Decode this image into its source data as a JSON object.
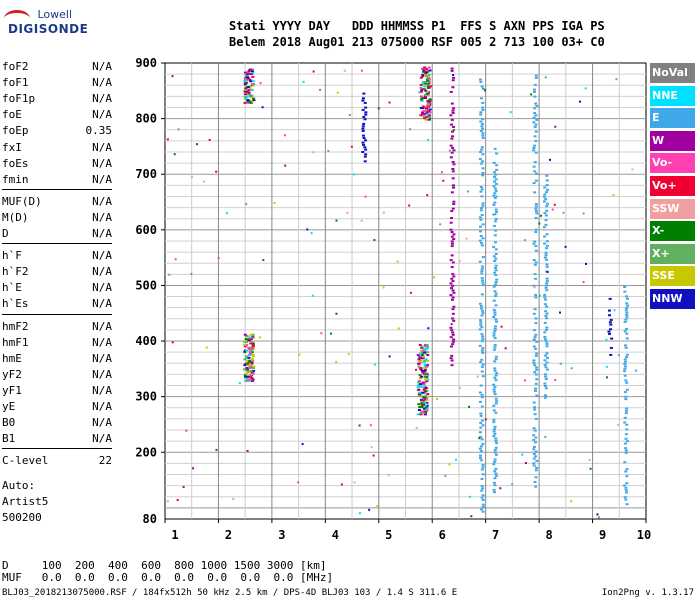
{
  "logo": {
    "top": "Lowell",
    "bottom": "DIGISONDE"
  },
  "station": {
    "header": "Stati YYYY DAY   DDD HHMMSS P1  FFS S AXN PPS IGA PS",
    "values": "Belem 2018 Aug01 213 075000 RSF 005 2 713 100 03+ C0"
  },
  "params": [
    {
      "name": "foF2",
      "value": "N/A"
    },
    {
      "name": "foF1",
      "value": "N/A"
    },
    {
      "name": "foF1p",
      "value": "N/A"
    },
    {
      "name": "foE",
      "value": "N/A"
    },
    {
      "name": "foEp",
      "value": "0.35"
    },
    {
      "name": "fxI",
      "value": "N/A"
    },
    {
      "name": "foEs",
      "value": "N/A"
    },
    {
      "name": "fmin",
      "value": "N/A"
    },
    {
      "name": "MUF(D)",
      "value": "N/A"
    },
    {
      "name": "M(D)",
      "value": "N/A"
    },
    {
      "name": "D",
      "value": "N/A"
    },
    {
      "name": "h`F",
      "value": "N/A"
    },
    {
      "name": "h`F2",
      "value": "N/A"
    },
    {
      "name": "h`E",
      "value": "N/A"
    },
    {
      "name": "h`Es",
      "value": "N/A"
    },
    {
      "name": "hmF2",
      "value": "N/A"
    },
    {
      "name": "hmF1",
      "value": "N/A"
    },
    {
      "name": "hmE",
      "value": "N/A"
    },
    {
      "name": "yF2",
      "value": "N/A"
    },
    {
      "name": "yF1",
      "value": "N/A"
    },
    {
      "name": "yE",
      "value": "N/A"
    },
    {
      "name": "B0",
      "value": "N/A"
    },
    {
      "name": "B1",
      "value": "N/A"
    },
    {
      "name": "C-level",
      "value": "22"
    }
  ],
  "auto": {
    "line1": "Auto:",
    "line2": "Artist5",
    "line3": "500200"
  },
  "legend": [
    {
      "label": "NoVal",
      "color": "#808080"
    },
    {
      "label": "NNE",
      "color": "#00e0ff"
    },
    {
      "label": "E",
      "color": "#40a8e8"
    },
    {
      "label": "W",
      "color": "#a000a0"
    },
    {
      "label": "Vo-",
      "color": "#ff40b0"
    },
    {
      "label": "Vo+",
      "color": "#f00030"
    },
    {
      "label": "SSW",
      "color": "#f0a0a0"
    },
    {
      "label": "X-",
      "color": "#008000"
    },
    {
      "label": "X+",
      "color": "#60b060"
    },
    {
      "label": "SSE",
      "color": "#c8c800"
    },
    {
      "label": "NNW",
      "color": "#1010c0"
    }
  ],
  "bottom": {
    "dline": "D     100  200  400  600  800 1000 1500 3000 [km]",
    "mufline": "MUF   0.0  0.0  0.0  0.0  0.0  0.0  0.0  0.0 [MHz]"
  },
  "footer": "BLJ03_2018213075000.RSF / 184fx512h 50 kHz 2.5 km / DPS-4D BLJ03 103 / 1.4 S 311.6 E",
  "version": "Ion2Png v. 1.3.17",
  "chart_data": {
    "type": "scatter",
    "xlim": [
      1,
      10
    ],
    "ylim": [
      80,
      900
    ],
    "x_ticks": [
      1,
      2,
      3,
      4,
      5,
      6,
      7,
      8,
      9,
      10
    ],
    "y_ticks": [
      200,
      300,
      400,
      500,
      600,
      700,
      800,
      900
    ],
    "y_tick_bottom": "80",
    "grid": true,
    "columns": [
      {
        "x": 5.8,
        "y0": 270,
        "y1": 395,
        "mix": true
      },
      {
        "x": 5.85,
        "y0": 800,
        "y1": 895,
        "mix": true
      },
      {
        "x": 6.35,
        "y0": 350,
        "y1": 895,
        "color": "#a000a0"
      },
      {
        "x": 6.9,
        "y0": 95,
        "y1": 880,
        "color": "#40a8e8"
      },
      {
        "x": 7.15,
        "y0": 130,
        "y1": 760,
        "color": "#40a8e8"
      },
      {
        "x": 7.9,
        "y0": 140,
        "y1": 880,
        "color": "#40a8e8"
      },
      {
        "x": 8.1,
        "y0": 300,
        "y1": 700,
        "color": "#40a8e8"
      },
      {
        "x": 2.55,
        "y0": 330,
        "y1": 415,
        "mix": true
      },
      {
        "x": 2.55,
        "y0": 830,
        "y1": 890,
        "mix": true
      },
      {
        "x": 4.7,
        "y0": 725,
        "y1": 850,
        "color": "#1010c0"
      },
      {
        "x": 9.3,
        "y0": 360,
        "y1": 480,
        "color": "#1010c0"
      },
      {
        "x": 9.6,
        "y0": 100,
        "y1": 500,
        "color": "#40a8e8"
      }
    ]
  }
}
